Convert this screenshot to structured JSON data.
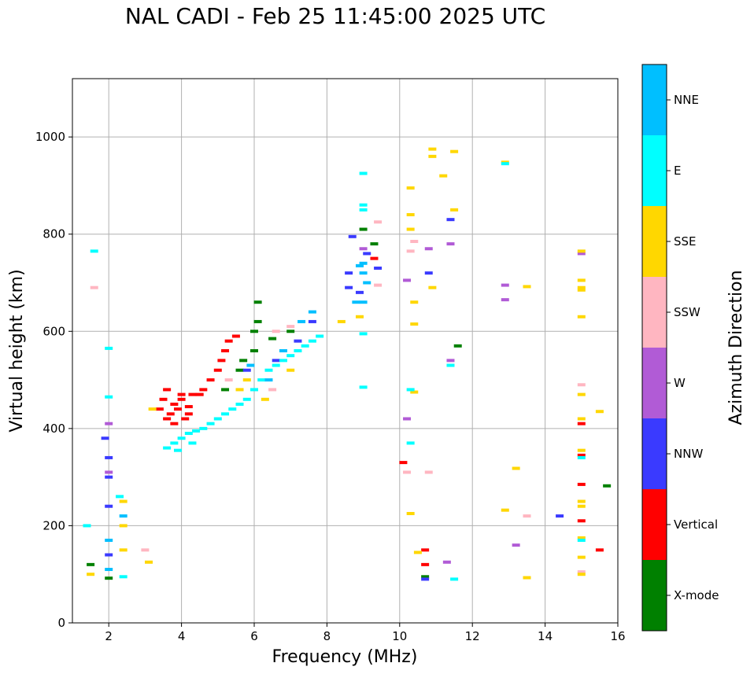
{
  "chart_data": {
    "type": "scatter",
    "title": "NAL CADI - Feb 25 11:45:00 2025 UTC",
    "xlabel": "Frequency (MHz)",
    "ylabel": "Virtual height (km)",
    "xlim": [
      1,
      16
    ],
    "ylim": [
      0,
      1120
    ],
    "xticks": [
      2,
      4,
      6,
      8,
      10,
      12,
      14,
      16
    ],
    "yticks": [
      0,
      200,
      400,
      600,
      800,
      1000
    ],
    "grid": true,
    "colorbar": {
      "label": "Azimuth Direction",
      "categories": [
        {
          "name": "X-mode",
          "color": "#008000"
        },
        {
          "name": "Vertical",
          "color": "#ff0000"
        },
        {
          "name": "NNW",
          "color": "#3a3aff"
        },
        {
          "name": "W",
          "color": "#b15bd6"
        },
        {
          "name": "SSW",
          "color": "#ffb6c1"
        },
        {
          "name": "SSE",
          "color": "#ffd700"
        },
        {
          "name": "E",
          "color": "#00ffff"
        },
        {
          "name": "NNE",
          "color": "#00bfff"
        }
      ]
    },
    "series": [
      {
        "name": "X-mode",
        "points": [
          [
            1.5,
            120
          ],
          [
            2.0,
            92
          ],
          [
            5.7,
            540
          ],
          [
            6.0,
            560
          ],
          [
            6.0,
            600
          ],
          [
            6.1,
            660
          ],
          [
            6.1,
            620
          ],
          [
            6.5,
            585
          ],
          [
            7.0,
            600
          ],
          [
            9.0,
            810
          ],
          [
            9.3,
            780
          ],
          [
            10.7,
            95
          ],
          [
            11.6,
            570
          ],
          [
            15.7,
            282
          ],
          [
            5.2,
            480
          ],
          [
            5.6,
            520
          ]
        ]
      },
      {
        "name": "Vertical",
        "points": [
          [
            3.4,
            440
          ],
          [
            3.5,
            460
          ],
          [
            3.6,
            420
          ],
          [
            3.7,
            430
          ],
          [
            3.8,
            450
          ],
          [
            3.9,
            440
          ],
          [
            4.0,
            460
          ],
          [
            4.1,
            420
          ],
          [
            4.2,
            445
          ],
          [
            4.3,
            470
          ],
          [
            4.5,
            470
          ],
          [
            4.6,
            480
          ],
          [
            4.8,
            500
          ],
          [
            5.0,
            520
          ],
          [
            5.1,
            540
          ],
          [
            5.2,
            560
          ],
          [
            5.3,
            580
          ],
          [
            5.5,
            590
          ],
          [
            3.8,
            410
          ],
          [
            4.2,
            430
          ],
          [
            10.1,
            330
          ],
          [
            10.7,
            150
          ],
          [
            10.7,
            120
          ],
          [
            15.0,
            410
          ],
          [
            15.0,
            345
          ],
          [
            15.0,
            285
          ],
          [
            15.0,
            210
          ],
          [
            15.5,
            150
          ],
          [
            9.3,
            750
          ],
          [
            4.0,
            470
          ],
          [
            3.6,
            480
          ]
        ]
      },
      {
        "name": "NNW",
        "points": [
          [
            2.0,
            140
          ],
          [
            2.0,
            240
          ],
          [
            2.0,
            300
          ],
          [
            1.9,
            380
          ],
          [
            2.0,
            340
          ],
          [
            8.6,
            690
          ],
          [
            8.6,
            720
          ],
          [
            8.7,
            795
          ],
          [
            8.9,
            680
          ],
          [
            9.1,
            760
          ],
          [
            9.4,
            730
          ],
          [
            10.7,
            90
          ],
          [
            10.8,
            720
          ],
          [
            11.4,
            830
          ],
          [
            5.8,
            520
          ],
          [
            6.6,
            540
          ],
          [
            7.2,
            580
          ],
          [
            7.6,
            620
          ],
          [
            14.4,
            220
          ]
        ]
      },
      {
        "name": "W",
        "points": [
          [
            2.0,
            310
          ],
          [
            2.0,
            410
          ],
          [
            10.2,
            420
          ],
          [
            10.2,
            705
          ],
          [
            11.4,
            540
          ],
          [
            12.9,
            695
          ],
          [
            12.9,
            665
          ],
          [
            13.2,
            160
          ],
          [
            15.0,
            760
          ],
          [
            10.8,
            770
          ],
          [
            11.4,
            780
          ],
          [
            11.3,
            125
          ],
          [
            9.0,
            770
          ]
        ]
      },
      {
        "name": "SSW",
        "points": [
          [
            1.6,
            690
          ],
          [
            3.0,
            150
          ],
          [
            5.3,
            500
          ],
          [
            6.5,
            480
          ],
          [
            9.4,
            825
          ],
          [
            9.4,
            695
          ],
          [
            10.3,
            765
          ],
          [
            10.4,
            785
          ],
          [
            10.2,
            310
          ],
          [
            10.8,
            310
          ],
          [
            13.5,
            220
          ],
          [
            15.0,
            490
          ],
          [
            15.0,
            105
          ],
          [
            6.6,
            600
          ],
          [
            7.0,
            610
          ]
        ]
      },
      {
        "name": "SSE",
        "points": [
          [
            1.5,
            100
          ],
          [
            2.4,
            200
          ],
          [
            2.4,
            150
          ],
          [
            2.4,
            250
          ],
          [
            3.1,
            125
          ],
          [
            3.2,
            440
          ],
          [
            5.6,
            480
          ],
          [
            5.8,
            500
          ],
          [
            8.4,
            620
          ],
          [
            8.9,
            630
          ],
          [
            10.3,
            895
          ],
          [
            10.3,
            840
          ],
          [
            10.3,
            810
          ],
          [
            10.4,
            615
          ],
          [
            10.4,
            475
          ],
          [
            10.3,
            225
          ],
          [
            10.4,
            660
          ],
          [
            10.5,
            145
          ],
          [
            10.9,
            975
          ],
          [
            10.9,
            960
          ],
          [
            10.9,
            690
          ],
          [
            11.2,
            920
          ],
          [
            11.5,
            970
          ],
          [
            11.5,
            850
          ],
          [
            12.9,
            948
          ],
          [
            13.2,
            318
          ],
          [
            13.5,
            692
          ],
          [
            13.5,
            93
          ],
          [
            12.9,
            232
          ],
          [
            15.0,
            765
          ],
          [
            15.0,
            705
          ],
          [
            15.0,
            690
          ],
          [
            15.0,
            685
          ],
          [
            15.0,
            630
          ],
          [
            15.0,
            470
          ],
          [
            15.0,
            420
          ],
          [
            15.0,
            355
          ],
          [
            15.0,
            250
          ],
          [
            15.0,
            240
          ],
          [
            15.0,
            175
          ],
          [
            15.0,
            135
          ],
          [
            15.0,
            100
          ],
          [
            15.5,
            435
          ],
          [
            6.3,
            460
          ],
          [
            7.0,
            520
          ]
        ]
      },
      {
        "name": "E",
        "points": [
          [
            1.4,
            200
          ],
          [
            1.6,
            765
          ],
          [
            2.0,
            565
          ],
          [
            2.0,
            465
          ],
          [
            2.4,
            95
          ],
          [
            2.3,
            260
          ],
          [
            3.6,
            360
          ],
          [
            3.8,
            370
          ],
          [
            4.0,
            380
          ],
          [
            4.2,
            390
          ],
          [
            4.4,
            395
          ],
          [
            4.6,
            400
          ],
          [
            4.8,
            410
          ],
          [
            5.0,
            420
          ],
          [
            5.2,
            430
          ],
          [
            5.4,
            440
          ],
          [
            5.6,
            450
          ],
          [
            5.8,
            460
          ],
          [
            6.0,
            480
          ],
          [
            6.2,
            500
          ],
          [
            6.4,
            520
          ],
          [
            6.6,
            530
          ],
          [
            6.8,
            540
          ],
          [
            7.0,
            550
          ],
          [
            7.2,
            560
          ],
          [
            7.4,
            570
          ],
          [
            7.6,
            580
          ],
          [
            7.8,
            590
          ],
          [
            3.9,
            355
          ],
          [
            4.3,
            370
          ],
          [
            9.0,
            925
          ],
          [
            9.0,
            860
          ],
          [
            9.0,
            850
          ],
          [
            9.0,
            595
          ],
          [
            9.0,
            485
          ],
          [
            10.3,
            370
          ],
          [
            10.3,
            480
          ],
          [
            11.4,
            530
          ],
          [
            11.5,
            90
          ],
          [
            12.9,
            945
          ],
          [
            15.0,
            340
          ],
          [
            15.0,
            170
          ]
        ]
      },
      {
        "name": "NNE",
        "points": [
          [
            2.0,
            170
          ],
          [
            2.0,
            110
          ],
          [
            2.4,
            220
          ],
          [
            6.8,
            560
          ],
          [
            7.3,
            620
          ],
          [
            7.6,
            640
          ],
          [
            8.9,
            735
          ],
          [
            9.0,
            740
          ],
          [
            9.0,
            720
          ],
          [
            9.1,
            700
          ],
          [
            9.0,
            660
          ],
          [
            8.8,
            660
          ],
          [
            6.4,
            500
          ],
          [
            5.9,
            530
          ]
        ]
      }
    ]
  }
}
